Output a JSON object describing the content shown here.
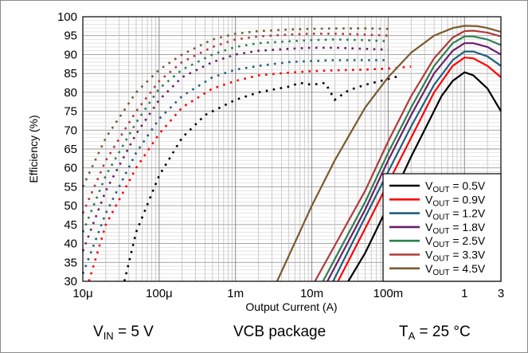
{
  "chart_data": {
    "type": "line",
    "x_scale": "log",
    "xlabel": "Output Current (A)",
    "ylabel": "Efficiency (%)",
    "xlim": [
      1e-05,
      3
    ],
    "ylim": [
      30,
      100
    ],
    "x_tick_labels": [
      {
        "value": 1e-05,
        "label": "10μ"
      },
      {
        "value": 0.0001,
        "label": "100μ"
      },
      {
        "value": 0.001,
        "label": "1m"
      },
      {
        "value": 0.01,
        "label": "10m"
      },
      {
        "value": 0.1,
        "label": "100m"
      },
      {
        "value": 1,
        "label": "1"
      },
      {
        "value": 3,
        "label": "3"
      }
    ],
    "y_ticks": [
      30,
      35,
      40,
      45,
      50,
      55,
      60,
      65,
      70,
      75,
      80,
      85,
      90,
      95,
      100
    ],
    "grid": true,
    "legend_position": "bottom-right",
    "series": [
      {
        "name_main": "V",
        "name_sub": "OUT",
        "name_tail": " = 0.5V",
        "color": "#000000",
        "light_load_dotted": [
          [
            3.5e-05,
            30
          ],
          [
            5e-05,
            43
          ],
          [
            0.0001,
            58
          ],
          [
            0.0002,
            68
          ],
          [
            0.0004,
            74
          ],
          [
            0.001,
            78
          ],
          [
            0.002,
            80
          ],
          [
            0.005,
            81.5
          ],
          [
            0.007,
            82.5
          ],
          [
            0.01,
            82
          ],
          [
            0.015,
            82.5
          ],
          [
            0.02,
            78
          ],
          [
            0.03,
            80.5
          ],
          [
            0.05,
            82
          ],
          [
            0.1,
            83.5
          ],
          [
            0.15,
            84.5
          ]
        ],
        "pwm_solid": [
          [
            0.03,
            30
          ],
          [
            0.05,
            37.5
          ],
          [
            0.1,
            50
          ],
          [
            0.2,
            63
          ],
          [
            0.3,
            70
          ],
          [
            0.5,
            79
          ],
          [
            0.7,
            83
          ],
          [
            1,
            85.3
          ],
          [
            1.3,
            84.5
          ],
          [
            2,
            81
          ],
          [
            3,
            75
          ]
        ]
      },
      {
        "name_main": "V",
        "name_sub": "OUT",
        "name_tail": " = 0.9V",
        "color": "#ff0000",
        "light_load_dotted": [
          [
            1.2e-05,
            30
          ],
          [
            2e-05,
            45
          ],
          [
            5e-05,
            60
          ],
          [
            0.0001,
            69
          ],
          [
            0.0002,
            76
          ],
          [
            0.0005,
            81
          ],
          [
            0.001,
            83
          ],
          [
            0.002,
            84.5
          ],
          [
            0.005,
            85.2
          ],
          [
            0.01,
            85.6
          ],
          [
            0.02,
            85.8
          ],
          [
            0.05,
            86
          ],
          [
            0.1,
            86.3
          ],
          [
            0.2,
            86.8
          ]
        ],
        "pwm_solid": [
          [
            0.022,
            30
          ],
          [
            0.05,
            44
          ],
          [
            0.1,
            56
          ],
          [
            0.2,
            68
          ],
          [
            0.4,
            80
          ],
          [
            0.7,
            87
          ],
          [
            1,
            89.2
          ],
          [
            1.3,
            89
          ],
          [
            2,
            87
          ],
          [
            3,
            84
          ]
        ]
      },
      {
        "name_main": "V",
        "name_sub": "OUT",
        "name_tail": " = 1.2V",
        "color": "#1f5f7f",
        "light_load_dotted": [
          [
            1e-05,
            32
          ],
          [
            2e-05,
            48
          ],
          [
            5e-05,
            64
          ],
          [
            0.0001,
            73
          ],
          [
            0.0002,
            79
          ],
          [
            0.0005,
            84
          ],
          [
            0.001,
            86
          ],
          [
            0.002,
            87
          ],
          [
            0.005,
            88
          ],
          [
            0.01,
            88.3
          ],
          [
            0.02,
            88.5
          ],
          [
            0.05,
            88.5
          ],
          [
            0.1,
            88.5
          ]
        ],
        "pwm_solid": [
          [
            0.019,
            30
          ],
          [
            0.05,
            47
          ],
          [
            0.1,
            59
          ],
          [
            0.2,
            71
          ],
          [
            0.4,
            82
          ],
          [
            0.7,
            88.5
          ],
          [
            1,
            90.8
          ],
          [
            1.3,
            90.8
          ],
          [
            2,
            89.5
          ],
          [
            3,
            87
          ]
        ]
      },
      {
        "name_main": "V",
        "name_sub": "OUT",
        "name_tail": " = 1.8V",
        "color": "#6a1f6a",
        "light_load_dotted": [
          [
            1e-05,
            38
          ],
          [
            2e-05,
            54
          ],
          [
            5e-05,
            69
          ],
          [
            0.0001,
            78
          ],
          [
            0.0002,
            84
          ],
          [
            0.0005,
            88
          ],
          [
            0.001,
            90
          ],
          [
            0.002,
            91
          ],
          [
            0.005,
            91.5
          ],
          [
            0.01,
            91.8
          ],
          [
            0.02,
            91.8
          ],
          [
            0.05,
            91.5
          ],
          [
            0.1,
            91.3
          ]
        ],
        "pwm_solid": [
          [
            0.016,
            30
          ],
          [
            0.05,
            49
          ],
          [
            0.1,
            62
          ],
          [
            0.2,
            74
          ],
          [
            0.4,
            85
          ],
          [
            0.7,
            91
          ],
          [
            1,
            93
          ],
          [
            1.3,
            93
          ],
          [
            2,
            92
          ],
          [
            3,
            90
          ]
        ]
      },
      {
        "name_main": "V",
        "name_sub": "OUT",
        "name_tail": " = 2.5V",
        "color": "#2e7d4f",
        "light_load_dotted": [
          [
            1e-05,
            43
          ],
          [
            2e-05,
            58
          ],
          [
            5e-05,
            72
          ],
          [
            0.0001,
            81
          ],
          [
            0.0002,
            86
          ],
          [
            0.0005,
            90
          ],
          [
            0.001,
            92
          ],
          [
            0.002,
            93
          ],
          [
            0.005,
            93.5
          ],
          [
            0.01,
            93.8
          ],
          [
            0.02,
            94
          ],
          [
            0.05,
            93.8
          ],
          [
            0.1,
            93.5
          ]
        ],
        "pwm_solid": [
          [
            0.014,
            30
          ],
          [
            0.05,
            51
          ],
          [
            0.1,
            64
          ],
          [
            0.2,
            76
          ],
          [
            0.4,
            87
          ],
          [
            0.7,
            93
          ],
          [
            1,
            94.8
          ],
          [
            1.3,
            94.8
          ],
          [
            2,
            94
          ],
          [
            3,
            92.5
          ]
        ]
      },
      {
        "name_main": "V",
        "name_sub": "OUT",
        "name_tail": " = 3.3V",
        "color": "#b03a3a",
        "light_load_dotted": [
          [
            1e-05,
            48
          ],
          [
            2e-05,
            62
          ],
          [
            5e-05,
            75
          ],
          [
            0.0001,
            83
          ],
          [
            0.0002,
            88
          ],
          [
            0.0005,
            92
          ],
          [
            0.001,
            94
          ],
          [
            0.002,
            94.8
          ],
          [
            0.005,
            95.3
          ],
          [
            0.01,
            95.5
          ],
          [
            0.02,
            95.5
          ],
          [
            0.05,
            95.3
          ],
          [
            0.1,
            95
          ]
        ],
        "pwm_solid": [
          [
            0.011,
            30
          ],
          [
            0.05,
            54
          ],
          [
            0.1,
            67
          ],
          [
            0.2,
            79
          ],
          [
            0.4,
            89
          ],
          [
            0.7,
            94.5
          ],
          [
            1,
            96.2
          ],
          [
            1.3,
            96.3
          ],
          [
            2,
            95.8
          ],
          [
            3,
            94.8
          ]
        ]
      },
      {
        "name_main": "V",
        "name_sub": "OUT",
        "name_tail": " = 4.5V",
        "color": "#7a5a2e",
        "light_load_dotted": [
          [
            1e-05,
            55
          ],
          [
            2e-05,
            68
          ],
          [
            5e-05,
            80
          ],
          [
            0.0001,
            86
          ],
          [
            0.0002,
            90
          ],
          [
            0.0005,
            94
          ],
          [
            0.001,
            95.5
          ],
          [
            0.002,
            96.2
          ],
          [
            0.005,
            96.6
          ],
          [
            0.01,
            96.8
          ],
          [
            0.02,
            96.9
          ],
          [
            0.05,
            96.9
          ],
          [
            0.1,
            96.8
          ]
        ],
        "pwm_solid": [
          [
            0.0035,
            30
          ],
          [
            0.01,
            50
          ],
          [
            0.02,
            62
          ],
          [
            0.05,
            76
          ],
          [
            0.1,
            84
          ],
          [
            0.2,
            90.5
          ],
          [
            0.4,
            95
          ],
          [
            0.7,
            97
          ],
          [
            1,
            97.6
          ],
          [
            1.5,
            97.5
          ],
          [
            2,
            97
          ],
          [
            3,
            96
          ]
        ]
      }
    ]
  },
  "footer": {
    "vin_main": "V",
    "vin_sub": "IN",
    "vin_tail": " = 5 V",
    "package": "VCB package",
    "ta_main": "T",
    "ta_sub": "A",
    "ta_tail": " = 25 °C"
  }
}
